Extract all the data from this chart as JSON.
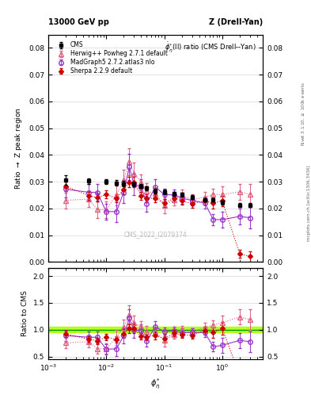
{
  "title_top_left": "13000 GeV pp",
  "title_top_right": "Z (Drell-Yan)",
  "plot_title": "$\\dot{\\phi}_{\\eta}^{*}$(ll) ratio (CMS Drell--Yan)",
  "ylabel_main": "Ratio $\\rightarrow$ Z peak region",
  "ylabel_ratio": "Ratio to CMS",
  "xlabel": "$\\phi_{\\eta}^{*}$",
  "right_label_top": "Rivet 3.1.10, $\\geq$ 100k events",
  "right_label_bottom": "mcplots.cern.ch [arXiv:1306.3436]",
  "watermark": "CMS_2022_I2079374",
  "xlim": [
    0.001,
    5.0
  ],
  "ylim_main": [
    0.0,
    0.085
  ],
  "ylim_ratio": [
    0.45,
    2.15
  ],
  "yticks_main": [
    0.0,
    0.01,
    0.02,
    0.03,
    0.04,
    0.05,
    0.06,
    0.07,
    0.08
  ],
  "yticks_ratio": [
    0.5,
    1.0,
    1.5,
    2.0
  ],
  "cms_x": [
    0.002,
    0.005,
    0.01,
    0.015,
    0.02,
    0.03,
    0.04,
    0.05,
    0.07,
    0.1,
    0.15,
    0.2,
    0.3,
    0.5,
    0.7,
    1.0,
    2.0,
    3.0
  ],
  "cms_y": [
    0.0305,
    0.0302,
    0.03,
    0.0295,
    0.0292,
    0.029,
    0.0283,
    0.0275,
    0.0265,
    0.0262,
    0.0255,
    0.0252,
    0.0242,
    0.0232,
    0.0232,
    0.0222,
    0.0212,
    0.0212
  ],
  "cms_yerr": [
    0.0018,
    0.001,
    0.001,
    0.001,
    0.001,
    0.0008,
    0.0008,
    0.0008,
    0.0008,
    0.0008,
    0.0008,
    0.0007,
    0.0007,
    0.0007,
    0.0007,
    0.0007,
    0.0007,
    0.0007
  ],
  "herwig_x": [
    0.002,
    0.005,
    0.007,
    0.01,
    0.015,
    0.02,
    0.025,
    0.03,
    0.04,
    0.05,
    0.07,
    0.1,
    0.15,
    0.2,
    0.3,
    0.5,
    0.7,
    1.0,
    2.0,
    3.0
  ],
  "herwig_y": [
    0.023,
    0.0235,
    0.0195,
    0.0195,
    0.025,
    0.0305,
    0.0375,
    0.033,
    0.0298,
    0.0265,
    0.0255,
    0.0212,
    0.0232,
    0.025,
    0.0232,
    0.0242,
    0.0252,
    0.0252,
    0.0262,
    0.0252
  ],
  "herwig_yerr": [
    0.003,
    0.003,
    0.003,
    0.003,
    0.004,
    0.004,
    0.005,
    0.004,
    0.003,
    0.003,
    0.002,
    0.003,
    0.002,
    0.002,
    0.002,
    0.002,
    0.002,
    0.003,
    0.003,
    0.004
  ],
  "herwig_color": "#e06080",
  "herwig_label": "Herwig++ Powheg 2.7.1 default",
  "madgraph_x": [
    0.002,
    0.005,
    0.007,
    0.01,
    0.015,
    0.02,
    0.025,
    0.03,
    0.04,
    0.05,
    0.07,
    0.1,
    0.15,
    0.2,
    0.3,
    0.5,
    0.7,
    1.0,
    2.0,
    3.0
  ],
  "madgraph_y": [
    0.0272,
    0.026,
    0.026,
    0.0188,
    0.0188,
    0.026,
    0.0355,
    0.029,
    0.028,
    0.0218,
    0.028,
    0.0252,
    0.025,
    0.0238,
    0.023,
    0.022,
    0.0158,
    0.0158,
    0.017,
    0.0165
  ],
  "madgraph_yerr": [
    0.003,
    0.003,
    0.003,
    0.003,
    0.004,
    0.004,
    0.005,
    0.004,
    0.003,
    0.003,
    0.003,
    0.002,
    0.002,
    0.002,
    0.002,
    0.002,
    0.002,
    0.003,
    0.003,
    0.004
  ],
  "madgraph_color": "#9933cc",
  "madgraph_label": "MadGraph5 2.7.2.atlas3 nlo",
  "sherpa_x": [
    0.002,
    0.005,
    0.007,
    0.01,
    0.015,
    0.02,
    0.025,
    0.03,
    0.04,
    0.05,
    0.07,
    0.1,
    0.15,
    0.2,
    0.3,
    0.5,
    0.7,
    1.0,
    2.0,
    3.0
  ],
  "sherpa_y": [
    0.0282,
    0.0248,
    0.024,
    0.0252,
    0.0238,
    0.027,
    0.0298,
    0.0298,
    0.0248,
    0.0238,
    0.0238,
    0.022,
    0.0238,
    0.0228,
    0.0218,
    0.0228,
    0.022,
    0.0228,
    0.003,
    0.002
  ],
  "sherpa_yerr": [
    0.0018,
    0.0015,
    0.0015,
    0.0015,
    0.0015,
    0.0018,
    0.002,
    0.002,
    0.0015,
    0.0015,
    0.0015,
    0.0015,
    0.0015,
    0.0015,
    0.0015,
    0.0015,
    0.002,
    0.002,
    0.0015,
    0.002
  ],
  "sherpa_color": "#cc0000",
  "sherpa_label": "Sherpa 2.2.9 default",
  "herwig_ratio_x": [
    0.002,
    0.005,
    0.007,
    0.01,
    0.015,
    0.02,
    0.025,
    0.03,
    0.04,
    0.05,
    0.07,
    0.1,
    0.15,
    0.2,
    0.3,
    0.5,
    0.7,
    1.0,
    2.0,
    3.0
  ],
  "herwig_ratio": [
    0.755,
    0.778,
    0.65,
    0.65,
    0.856,
    1.044,
    1.282,
    1.13,
    1.052,
    0.964,
    0.962,
    0.81,
    0.91,
    0.992,
    0.95,
    1.043,
    1.087,
    1.135,
    1.236,
    1.189
  ],
  "herwig_ratio_err": [
    0.1,
    0.1,
    0.1,
    0.1,
    0.14,
    0.14,
    0.17,
    0.14,
    0.11,
    0.11,
    0.08,
    0.12,
    0.08,
    0.08,
    0.08,
    0.09,
    0.09,
    0.13,
    0.14,
    0.19
  ],
  "madgraph_ratio_x": [
    0.002,
    0.005,
    0.007,
    0.01,
    0.015,
    0.02,
    0.025,
    0.03,
    0.04,
    0.05,
    0.07,
    0.1,
    0.15,
    0.2,
    0.3,
    0.5,
    0.7,
    1.0,
    2.0,
    3.0
  ],
  "madgraph_ratio": [
    0.892,
    0.861,
    0.861,
    0.637,
    0.645,
    0.889,
    1.213,
    0.996,
    0.989,
    0.792,
    1.057,
    0.962,
    0.98,
    0.944,
    0.95,
    0.948,
    0.682,
    0.712,
    0.802,
    0.778
  ],
  "madgraph_ratio_err": [
    0.1,
    0.1,
    0.1,
    0.1,
    0.14,
    0.14,
    0.17,
    0.14,
    0.11,
    0.11,
    0.11,
    0.08,
    0.08,
    0.08,
    0.08,
    0.09,
    0.09,
    0.14,
    0.14,
    0.19
  ],
  "sherpa_ratio_x": [
    0.002,
    0.005,
    0.007,
    0.01,
    0.015,
    0.02,
    0.025,
    0.03,
    0.04,
    0.05,
    0.07,
    0.1,
    0.15,
    0.2,
    0.3,
    0.5,
    0.7,
    1.0,
    2.0,
    3.0
  ],
  "sherpa_ratio": [
    0.925,
    0.822,
    0.795,
    0.864,
    0.817,
    0.926,
    1.023,
    1.024,
    0.877,
    0.865,
    0.898,
    0.839,
    0.933,
    0.905,
    0.901,
    0.983,
    0.948,
    1.027,
    0.141,
    0.094
  ],
  "sherpa_ratio_err": [
    0.06,
    0.06,
    0.06,
    0.06,
    0.06,
    0.08,
    0.08,
    0.08,
    0.06,
    0.06,
    0.07,
    0.07,
    0.06,
    0.06,
    0.06,
    0.07,
    0.1,
    0.12,
    0.07,
    0.1
  ],
  "ratio_band_color": "#aaff00",
  "ratio_line_color": "#009900"
}
